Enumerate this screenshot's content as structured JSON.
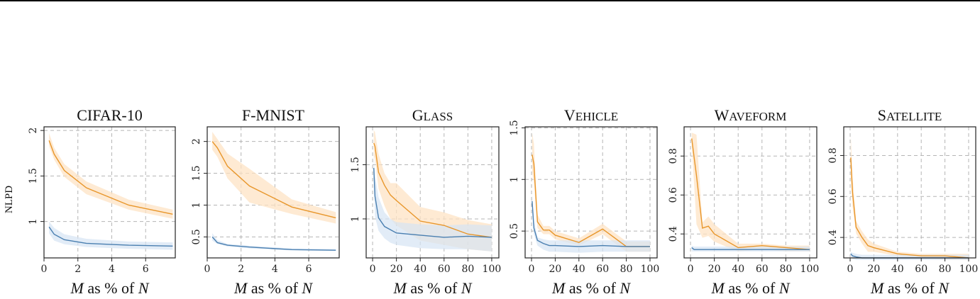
{
  "figure": {
    "ylabel_shared": "NLPD"
  },
  "colors": {
    "orange": "#e8962a",
    "orange_band": "#fde3c4",
    "blue": "#4a7fb0",
    "blue_band": "#d6e4f4",
    "grid": "#b5b5b5"
  },
  "chart_data": [
    {
      "type": "line",
      "title": "CIFAR-10",
      "title_smallcaps": false,
      "xlabel": {
        "var": "M",
        "mid": " as % of ",
        "var2": "N"
      },
      "ylabel": "NLPD",
      "xlim": [
        0,
        7.75
      ],
      "ylim": [
        0.6,
        2.04
      ],
      "xticks": [
        0,
        2,
        4,
        6
      ],
      "xtick_labels": [
        "0",
        "2",
        "4",
        "6"
      ],
      "yticks": [
        1,
        1.5,
        2
      ],
      "ytick_labels": [
        "1",
        "1.5",
        "2"
      ],
      "grid": true,
      "series": [
        {
          "name": "orange",
          "color": "orange",
          "x": [
            0.3,
            0.6,
            1.2,
            2.5,
            5,
            7.6
          ],
          "y": [
            1.89,
            1.74,
            1.56,
            1.37,
            1.18,
            1.08
          ],
          "lower": [
            1.83,
            1.68,
            1.49,
            1.3,
            1.13,
            1.03
          ],
          "upper": [
            1.97,
            1.81,
            1.63,
            1.44,
            1.24,
            1.13
          ]
        },
        {
          "name": "blue",
          "color": "blue",
          "x": [
            0.3,
            0.6,
            1.2,
            2.5,
            5,
            7.6
          ],
          "y": [
            0.94,
            0.86,
            0.8,
            0.76,
            0.74,
            0.73
          ],
          "lower": [
            0.87,
            0.79,
            0.75,
            0.72,
            0.7,
            0.69
          ],
          "upper": [
            1.0,
            0.93,
            0.86,
            0.81,
            0.78,
            0.77
          ]
        }
      ]
    },
    {
      "type": "line",
      "title": "F-MNIST",
      "title_smallcaps": false,
      "xlabel": {
        "var": "M",
        "mid": " as % of ",
        "var2": "N"
      },
      "ylabel": "",
      "xlim": [
        0,
        7.8
      ],
      "ylim": [
        0.17,
        2.23
      ],
      "xticks": [
        0,
        2,
        4,
        6
      ],
      "xtick_labels": [
        "0",
        "2",
        "4",
        "6"
      ],
      "yticks": [
        0.5,
        1,
        1.5,
        2
      ],
      "ytick_labels": [
        "0.5",
        "1",
        "1.5",
        "2"
      ],
      "grid": true,
      "series": [
        {
          "name": "orange",
          "color": "orange",
          "x": [
            0.3,
            0.6,
            1.2,
            2.5,
            5,
            7.6
          ],
          "y": [
            2.0,
            1.9,
            1.61,
            1.3,
            0.97,
            0.8
          ],
          "lower": [
            1.87,
            1.76,
            1.42,
            1.04,
            0.86,
            0.71
          ],
          "upper": [
            2.15,
            2.04,
            1.81,
            1.57,
            1.09,
            0.89
          ]
        },
        {
          "name": "blue",
          "color": "blue",
          "x": [
            0.3,
            0.6,
            1.2,
            2.5,
            5,
            7.6
          ],
          "y": [
            0.5,
            0.41,
            0.37,
            0.34,
            0.3,
            0.29
          ],
          "lower": [
            0.44,
            0.39,
            0.35,
            0.32,
            0.29,
            0.28
          ],
          "upper": [
            0.56,
            0.45,
            0.39,
            0.36,
            0.32,
            0.31
          ]
        }
      ]
    },
    {
      "type": "line",
      "title": "Glass",
      "title_smallcaps": true,
      "xlabel": {
        "var": "M",
        "mid": " as % of ",
        "var2": "N"
      },
      "ylabel": "",
      "xlim": [
        -5.4,
        106
      ],
      "ylim": [
        0.64,
        1.85
      ],
      "xticks": [
        0,
        20,
        40,
        60,
        80,
        100
      ],
      "xtick_labels": [
        "0",
        "20",
        "40",
        "60",
        "80",
        "100"
      ],
      "yticks": [
        1,
        1.5
      ],
      "ytick_labels": [
        "1",
        "1.5"
      ],
      "grid": true,
      "series": [
        {
          "name": "orange",
          "color": "orange",
          "x": [
            1,
            2,
            5,
            10,
            15,
            20,
            40,
            60,
            80,
            100
          ],
          "y": [
            1.7,
            1.67,
            1.43,
            1.31,
            1.22,
            1.17,
            0.98,
            0.94,
            0.86,
            0.83
          ],
          "lower": [
            1.58,
            1.55,
            1.28,
            1.12,
            1.0,
            0.94,
            0.8,
            0.76,
            0.72,
            0.7
          ],
          "upper": [
            1.82,
            1.8,
            1.6,
            1.42,
            1.33,
            1.33,
            1.11,
            1.06,
            0.99,
            0.95
          ]
        },
        {
          "name": "blue",
          "color": "blue",
          "x": [
            1,
            2,
            5,
            10,
            15,
            20,
            40,
            60,
            80,
            100
          ],
          "y": [
            1.47,
            1.21,
            1.01,
            0.93,
            0.9,
            0.87,
            0.85,
            0.83,
            0.84,
            0.83
          ],
          "lower": [
            1.3,
            1.02,
            0.89,
            0.82,
            0.78,
            0.76,
            0.73,
            0.72,
            0.72,
            0.7
          ],
          "upper": [
            1.6,
            1.4,
            1.2,
            1.06,
            1.0,
            0.97,
            0.95,
            0.94,
            0.95,
            0.94
          ]
        }
      ]
    },
    {
      "type": "line",
      "title": "Vehicle",
      "title_smallcaps": true,
      "xlabel": {
        "var": "M",
        "mid": " as % of ",
        "var2": "N"
      },
      "ylabel": "",
      "xlim": [
        -5.4,
        106
      ],
      "ylim": [
        0.24,
        1.51
      ],
      "xticks": [
        0,
        20,
        40,
        60,
        80,
        100
      ],
      "xtick_labels": [
        "0",
        "20",
        "40",
        "60",
        "80",
        "100"
      ],
      "yticks": [
        0.5,
        1,
        1.5
      ],
      "ytick_labels": [
        "0.5",
        "1",
        "1.5"
      ],
      "grid": true,
      "series": [
        {
          "name": "orange",
          "color": "orange",
          "x": [
            0.5,
            2,
            5,
            10,
            15,
            20,
            40,
            60,
            80,
            100
          ],
          "y": [
            1.24,
            1.15,
            0.59,
            0.51,
            0.51,
            0.46,
            0.39,
            0.52,
            0.35,
            0.35
          ],
          "lower": [
            1.08,
            0.96,
            0.53,
            0.47,
            0.47,
            0.42,
            0.36,
            0.47,
            0.3,
            0.3
          ],
          "upper": [
            1.45,
            1.35,
            0.66,
            0.55,
            0.55,
            0.5,
            0.43,
            0.57,
            0.4,
            0.4
          ]
        },
        {
          "name": "blue",
          "color": "blue",
          "x": [
            0.5,
            2,
            5,
            10,
            15,
            20,
            40,
            60,
            80,
            100
          ],
          "y": [
            0.79,
            0.53,
            0.41,
            0.38,
            0.36,
            0.36,
            0.35,
            0.36,
            0.35,
            0.35
          ],
          "lower": [
            0.7,
            0.47,
            0.36,
            0.32,
            0.3,
            0.3,
            0.29,
            0.3,
            0.3,
            0.3
          ],
          "upper": [
            0.86,
            0.6,
            0.44,
            0.42,
            0.41,
            0.41,
            0.41,
            0.41,
            0.41,
            0.41
          ]
        }
      ]
    },
    {
      "type": "line",
      "title": "Waveform",
      "title_smallcaps": true,
      "xlabel": {
        "var": "M",
        "mid": " as % of ",
        "var2": "N"
      },
      "ylabel": "",
      "xlim": [
        -5.4,
        106
      ],
      "ylim": [
        0.277,
        0.95
      ],
      "xticks": [
        0,
        20,
        40,
        60,
        80,
        100
      ],
      "xtick_labels": [
        "0",
        "20",
        "40",
        "60",
        "80",
        "100"
      ],
      "yticks": [
        0.4,
        0.6,
        0.8
      ],
      "ytick_labels": [
        "0.4",
        "0.6",
        "0.8"
      ],
      "grid": true,
      "series": [
        {
          "name": "orange",
          "color": "orange",
          "x": [
            1,
            5,
            10,
            15,
            20,
            40,
            60,
            80,
            100
          ],
          "y": [
            0.89,
            0.7,
            0.43,
            0.44,
            0.4,
            0.33,
            0.34,
            0.33,
            0.32
          ],
          "lower": [
            0.86,
            0.45,
            0.38,
            0.39,
            0.36,
            0.31,
            0.32,
            0.31,
            0.31
          ],
          "upper": [
            0.92,
            0.91,
            0.46,
            0.49,
            0.45,
            0.35,
            0.35,
            0.34,
            0.34
          ]
        },
        {
          "name": "blue",
          "color": "blue",
          "x": [
            1,
            3,
            5,
            10,
            20,
            40,
            60,
            80,
            100
          ],
          "y": [
            0.33,
            0.32,
            0.32,
            0.32,
            0.32,
            0.32,
            0.32,
            0.32,
            0.32
          ],
          "lower": [
            0.31,
            0.31,
            0.31,
            0.31,
            0.31,
            0.31,
            0.31,
            0.31,
            0.31
          ],
          "upper": [
            0.34,
            0.335,
            0.335,
            0.335,
            0.335,
            0.335,
            0.335,
            0.335,
            0.335
          ]
        }
      ]
    },
    {
      "type": "line",
      "title": "Satellite",
      "title_smallcaps": true,
      "xlabel": {
        "var": "M",
        "mid": " as % of ",
        "var2": "N"
      },
      "ylabel": "",
      "xlim": [
        -5.4,
        106
      ],
      "ylim": [
        0.3,
        0.94
      ],
      "xticks": [
        0,
        20,
        40,
        60,
        80,
        100
      ],
      "xtick_labels": [
        "0",
        "20",
        "40",
        "60",
        "80",
        "100"
      ],
      "yticks": [
        0.4,
        0.6,
        0.8
      ],
      "ytick_labels": [
        "0.4",
        "0.6",
        "0.8"
      ],
      "grid": true,
      "series": [
        {
          "name": "orange",
          "color": "orange",
          "x": [
            0.5,
            2,
            5,
            10,
            15,
            20,
            40,
            60,
            80,
            100
          ],
          "y": [
            0.79,
            0.62,
            0.45,
            0.4,
            0.36,
            0.35,
            0.32,
            0.31,
            0.31,
            0.3
          ],
          "lower": [
            0.7,
            0.55,
            0.42,
            0.37,
            0.33,
            0.33,
            0.31,
            0.3,
            0.29,
            0.29
          ],
          "upper": [
            0.9,
            0.7,
            0.48,
            0.43,
            0.39,
            0.37,
            0.33,
            0.32,
            0.32,
            0.32
          ]
        },
        {
          "name": "blue",
          "color": "blue",
          "x": [
            0.5,
            2,
            5,
            10,
            20,
            40,
            60,
            80,
            100
          ],
          "y": [
            0.32,
            0.31,
            0.305,
            0.3,
            0.3,
            0.3,
            0.3,
            0.3,
            0.3
          ],
          "lower": [
            0.31,
            0.295,
            0.29,
            0.29,
            0.29,
            0.29,
            0.29,
            0.29,
            0.29
          ],
          "upper": [
            0.33,
            0.325,
            0.32,
            0.315,
            0.315,
            0.315,
            0.315,
            0.315,
            0.315
          ]
        }
      ]
    }
  ]
}
